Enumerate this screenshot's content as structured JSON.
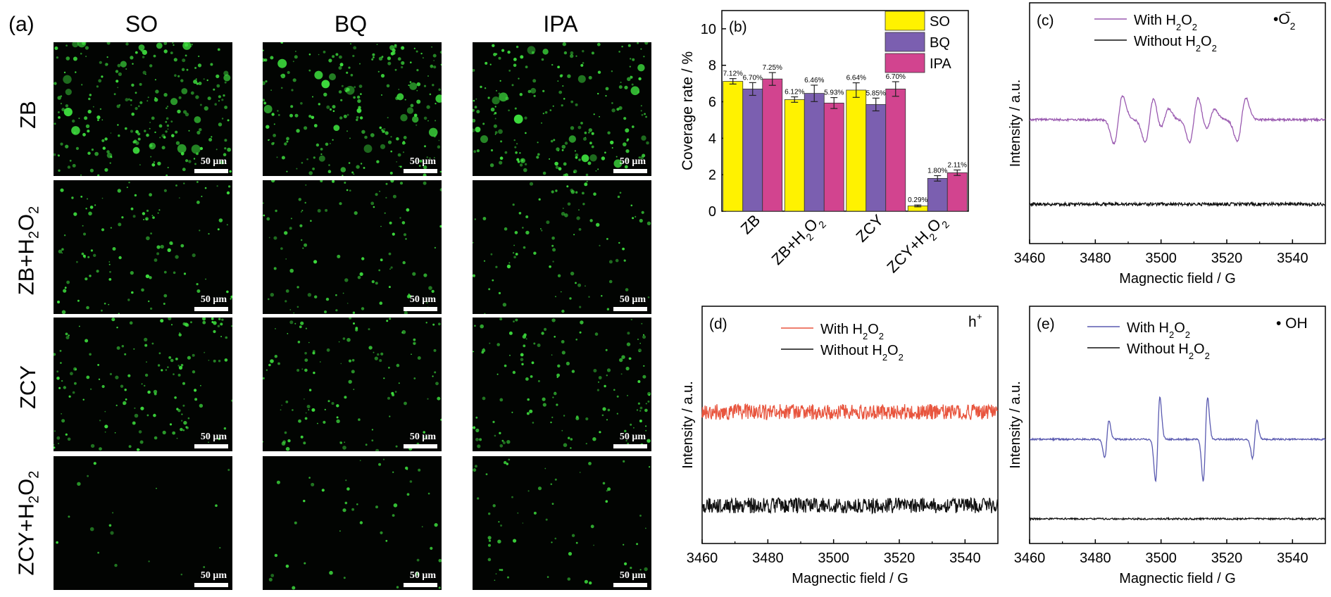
{
  "panel_a": {
    "label": "(a)",
    "columns": [
      "SO",
      "BQ",
      "IPA"
    ],
    "rows": [
      {
        "main": "ZB",
        "sub": "",
        "tail": ""
      },
      {
        "main": "ZB+H",
        "sub": "2",
        "tail": "O",
        "sub2": "2"
      },
      {
        "main": "ZCY",
        "sub": "",
        "tail": ""
      },
      {
        "main": "ZCY+H",
        "sub": "2",
        "tail": "O",
        "sub2": "2"
      }
    ],
    "scale_label": "50 μm",
    "dot_color": "#3ddc3d",
    "background": "#020402"
  },
  "chart_data": [
    {
      "panel": "(b)",
      "type": "bar",
      "ylabel": "Coverage rate / %",
      "ylim": [
        0,
        11
      ],
      "yticks": [
        0,
        2,
        4,
        6,
        8,
        10
      ],
      "categories": [
        "ZB",
        "ZB+H2O2",
        "ZCY",
        "ZCY+H2O2"
      ],
      "series": [
        {
          "name": "SO",
          "color": "#fff200",
          "values": [
            7.12,
            6.12,
            6.64,
            0.29
          ],
          "errors": [
            0.15,
            0.15,
            0.4,
            0.05
          ],
          "labels": [
            "7.12%",
            "6.12%",
            "6.64%",
            "0.29%"
          ]
        },
        {
          "name": "BQ",
          "color": "#7b5fb0",
          "values": [
            6.7,
            6.46,
            5.85,
            1.8
          ],
          "errors": [
            0.35,
            0.45,
            0.35,
            0.15
          ],
          "labels": [
            "6.70%",
            "6.46%",
            "5.85%",
            "1.80%"
          ]
        },
        {
          "name": "IPA",
          "color": "#d2448f",
          "values": [
            7.25,
            5.93,
            6.7,
            2.11
          ],
          "errors": [
            0.35,
            0.3,
            0.4,
            0.15
          ],
          "labels": [
            "7.25%",
            "5.93%",
            "6.70%",
            "2.11%"
          ]
        }
      ],
      "legend_position": "top-right"
    },
    {
      "panel": "(c)",
      "type": "line",
      "species": "•O2−",
      "xlabel": "Magnectic field / G",
      "ylabel": "Intensity / a.u.",
      "xlim": [
        3460,
        3550
      ],
      "xticks": [
        3460,
        3480,
        3500,
        3520,
        3540
      ],
      "series": [
        {
          "name": "With H2O2",
          "color": "#9a5ab0",
          "signal": "superoxide",
          "peaks": [
            {
              "x": 3487,
              "a": 1.0
            },
            {
              "x": 3496.5,
              "a": 0.95
            },
            {
              "x": 3501,
              "a": 0.45
            },
            {
              "x": 3510,
              "a": 0.95
            },
            {
              "x": 3515,
              "a": 0.45
            },
            {
              "x": 3524.5,
              "a": 0.9
            }
          ]
        },
        {
          "name": "Without H2O2",
          "color": "#111111",
          "signal": "noise"
        }
      ]
    },
    {
      "panel": "(d)",
      "type": "line",
      "species": "h+",
      "xlabel": "Magnectic field / G",
      "ylabel": "Intensity / a.u.",
      "xlim": [
        3460,
        3550
      ],
      "xticks": [
        3460,
        3480,
        3500,
        3520,
        3540
      ],
      "series": [
        {
          "name": "With H2O2",
          "color": "#e8553e",
          "signal": "noise"
        },
        {
          "name": "Without H2O2",
          "color": "#111111",
          "signal": "noise"
        }
      ]
    },
    {
      "panel": "(e)",
      "type": "line",
      "species": "• OH",
      "xlabel": "Magnectic field / G",
      "ylabel": "Intensity / a.u.",
      "xlim": [
        3460,
        3550
      ],
      "xticks": [
        3460,
        3480,
        3500,
        3520,
        3540
      ],
      "series": [
        {
          "name": "With H2O2",
          "color": "#5a5ab0",
          "signal": "hydroxyl",
          "peaks": [
            {
              "x": 3483.5,
              "a": 0.45
            },
            {
              "x": 3499,
              "a": 1.0
            },
            {
              "x": 3513.5,
              "a": 1.0
            },
            {
              "x": 3528.5,
              "a": 0.45
            }
          ]
        },
        {
          "name": "Without H2O2",
          "color": "#111111",
          "signal": "noise"
        }
      ]
    }
  ]
}
